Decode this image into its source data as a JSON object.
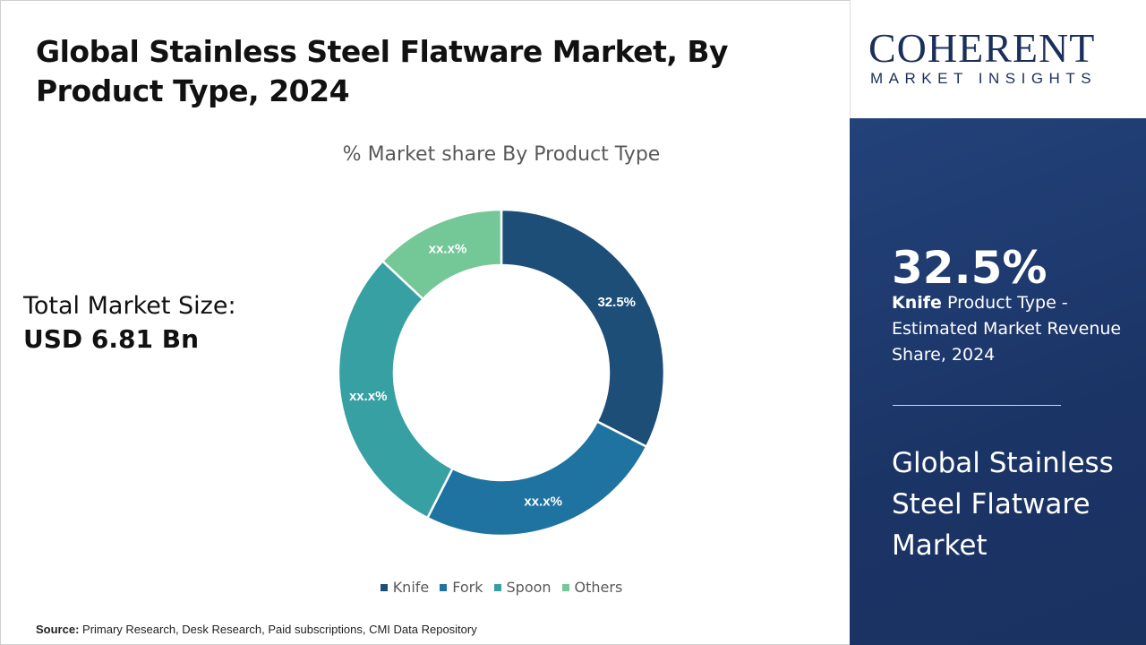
{
  "title": "Global Stainless Steel Flatware Market, By Product Type, 2024",
  "total_market": {
    "label": "Total Market Size:",
    "value": "USD 6.81 Bn"
  },
  "source": {
    "label": "Source:",
    "text": " Primary Research, Desk Research, Paid subscriptions, CMI Data Repository"
  },
  "logo": {
    "main": "COHERENT",
    "sub": "MARKET INSIGHTS"
  },
  "panel": {
    "value": "32.5%",
    "desc_bold": "Knife",
    "desc_rest": " Product Type - Estimated Market Revenue Share, 2024",
    "market": "Global Stainless Steel Flatware Market"
  },
  "chart_data": {
    "type": "pie",
    "donut": true,
    "title": "% Market share By Product Type",
    "categories": [
      "Knife",
      "Fork",
      "Spoon",
      "Others"
    ],
    "values": [
      32.5,
      25,
      29.5,
      13
    ],
    "data_labels": [
      "32.5%",
      "xx.x%",
      "xx.x%",
      "xx.x%"
    ],
    "colors": [
      "#1d4e78",
      "#1f73a0",
      "#37a0a3",
      "#74c796"
    ],
    "legend": "bottom"
  }
}
